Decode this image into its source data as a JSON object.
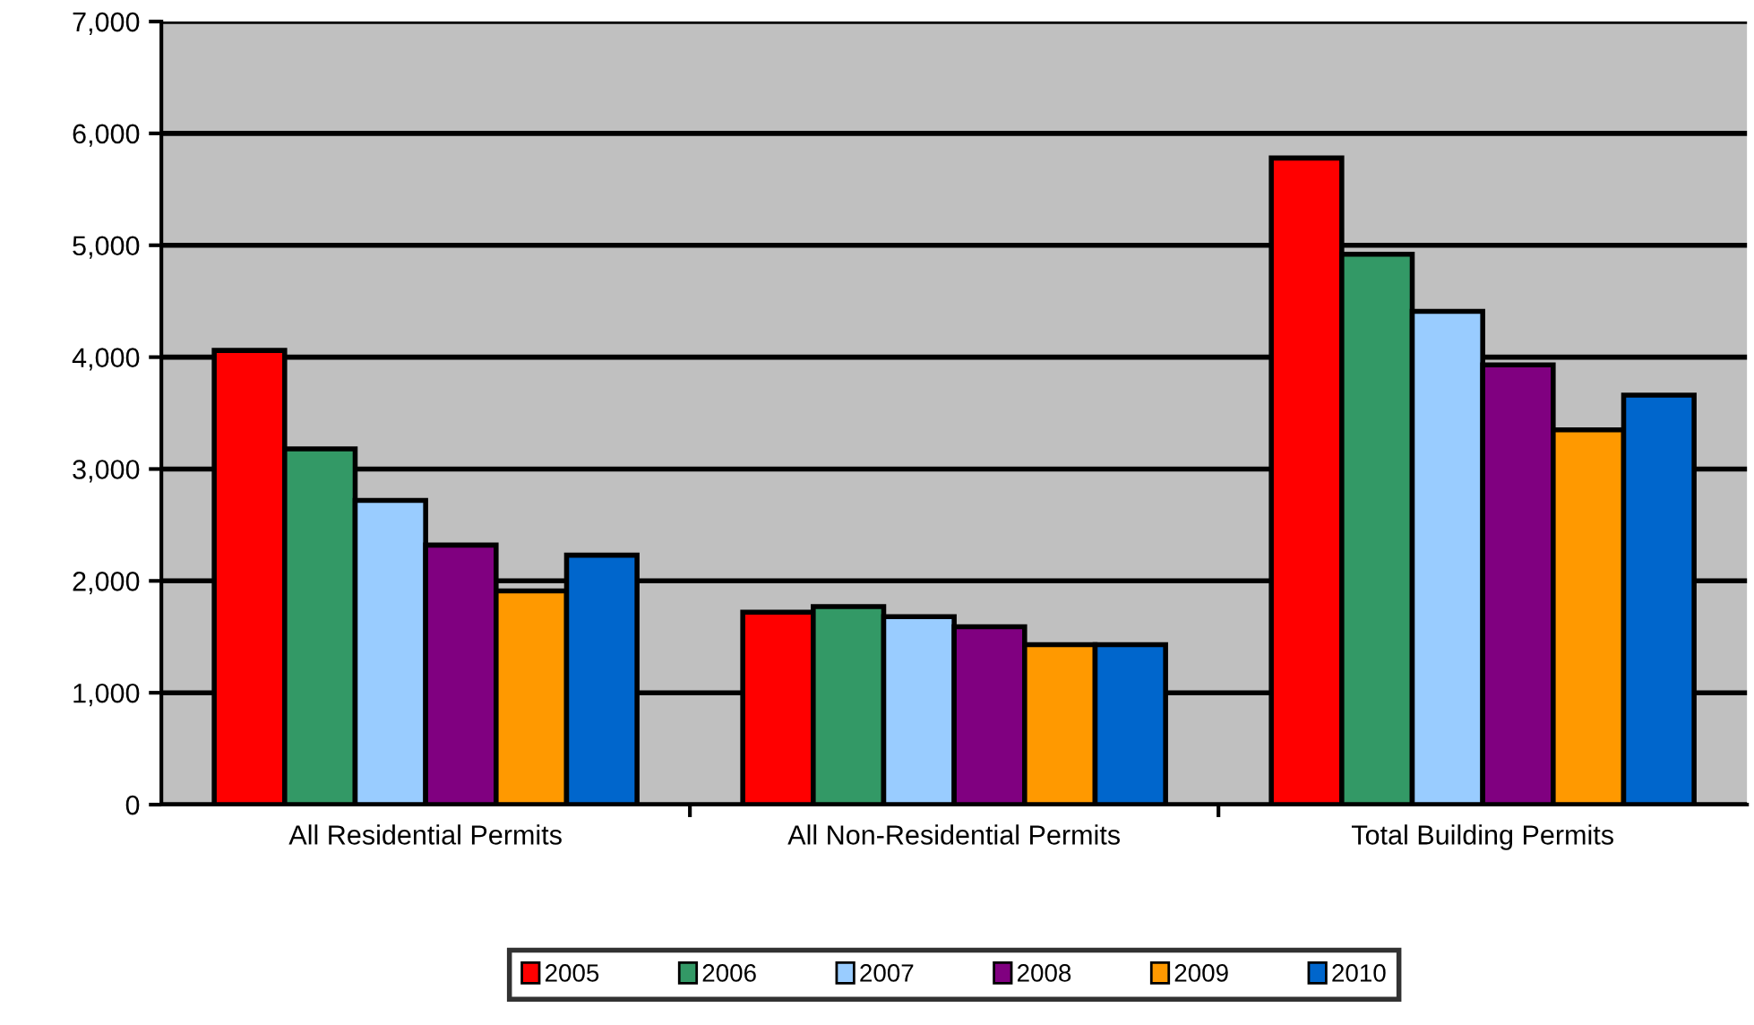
{
  "chart_data": {
    "type": "bar",
    "categories": [
      "All Residential Permits",
      "All Non-Residential Permits",
      "Total Building Permits"
    ],
    "series": [
      {
        "name": "2005",
        "color": "#ff0000",
        "values": [
          4060,
          1720,
          5780
        ]
      },
      {
        "name": "2006",
        "color": "#339966",
        "values": [
          3180,
          1770,
          4920
        ]
      },
      {
        "name": "2007",
        "color": "#99ccff",
        "values": [
          2720,
          1680,
          4410
        ]
      },
      {
        "name": "2008",
        "color": "#800080",
        "values": [
          2320,
          1590,
          3930
        ]
      },
      {
        "name": "2009",
        "color": "#ff9900",
        "values": [
          1910,
          1430,
          3350
        ]
      },
      {
        "name": "2010",
        "color": "#0066cc",
        "values": [
          2230,
          1430,
          3660
        ]
      }
    ],
    "ylim": [
      0,
      7000
    ],
    "yticks": [
      0,
      {
        "value": 1000,
        "label": "1,000"
      },
      {
        "value": 2000,
        "label": "2,000"
      },
      {
        "value": 3000,
        "label": "3,000"
      },
      {
        "value": 4000,
        "label": "4,000"
      },
      {
        "value": 5000,
        "label": "5,000"
      },
      {
        "value": 6000,
        "label": "6,000"
      },
      {
        "value": 7000,
        "label": "7,000"
      }
    ],
    "grid": "y",
    "legend": "bottom"
  }
}
